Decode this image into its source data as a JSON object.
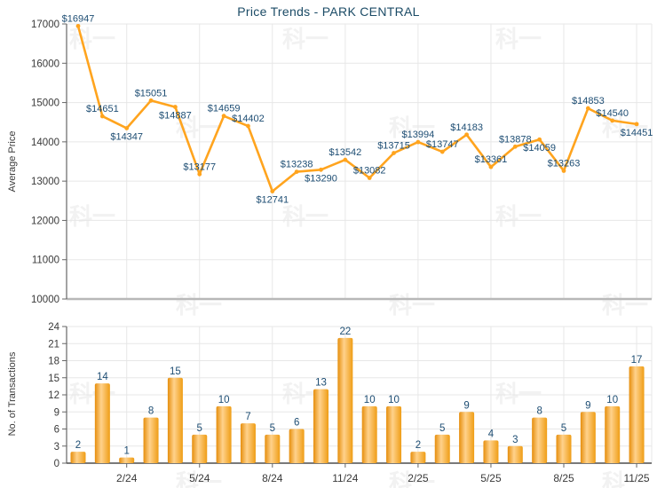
{
  "title": "Price Trends - PARK CENTRAL",
  "watermark_text": "科一",
  "colors": {
    "accent_orange": "#FFA41E",
    "bar_edge_left": "#E68E0C",
    "bar_center": "#FFD28C",
    "bar_edge_right": "#EF9D15",
    "label_navy": "#1D4D73",
    "title_color": "#1B4B66",
    "tick_text": "#3A3A3A",
    "grid": "#E7E7E7",
    "axis_dark": "#666666",
    "top_baseline": "#B8B8B8",
    "bottom_baseline": "#4D4D4D"
  },
  "chart_data": [
    {
      "type": "line",
      "title": "Price Trends - PARK CENTRAL",
      "ylabel": "Average Price",
      "ylim": [
        10000,
        17000
      ],
      "ytick_step": 1000,
      "grid": true,
      "legend": "none",
      "n_points": 24,
      "x_tick_labels": [
        "2/24",
        "5/24",
        "8/24",
        "11/24",
        "2/25",
        "5/25",
        "8/25",
        "11/25"
      ],
      "x_tick_point_index": [
        2,
        5,
        8,
        11,
        14,
        17,
        20,
        23
      ],
      "values": [
        16947,
        14651,
        14347,
        15051,
        14887,
        13177,
        14659,
        14402,
        12741,
        13238,
        13290,
        13542,
        13082,
        13715,
        13994,
        13747,
        14183,
        13361,
        13878,
        14059,
        13263,
        14853,
        14540,
        14451
      ],
      "point_labels": [
        "$16947",
        "$14651",
        "$14347",
        "$15051",
        "$14887",
        "$13177",
        "$14659",
        "$14402",
        "$12741",
        "$13238",
        "$13290",
        "$13542",
        "$13082",
        "$13715",
        "$13994",
        "$13747",
        "$14183",
        "$13361",
        "$13878",
        "$14059",
        "$13263",
        "$14853",
        "$14540",
        "$14451"
      ],
      "label_side": [
        "above",
        "above",
        "below",
        "above",
        "below",
        "above",
        "above",
        "above",
        "below",
        "above",
        "below",
        "above",
        "above",
        "above",
        "above",
        "above",
        "above",
        "above",
        "above",
        "below",
        "above",
        "above",
        "above",
        "below"
      ]
    },
    {
      "type": "bar",
      "ylabel": "No. of Transactions",
      "ylim": [
        0,
        24
      ],
      "ytick_step": 3,
      "grid": true,
      "legend": "none",
      "x_tick_labels": [
        "2/24",
        "5/24",
        "8/24",
        "11/24",
        "2/25",
        "5/25",
        "8/25",
        "11/25"
      ],
      "x_tick_point_index": [
        2,
        5,
        8,
        11,
        14,
        17,
        20,
        23
      ],
      "values": [
        2,
        14,
        1,
        8,
        15,
        5,
        10,
        7,
        5,
        6,
        13,
        22,
        10,
        10,
        2,
        5,
        9,
        4,
        3,
        8,
        5,
        9,
        10,
        17
      ]
    }
  ]
}
